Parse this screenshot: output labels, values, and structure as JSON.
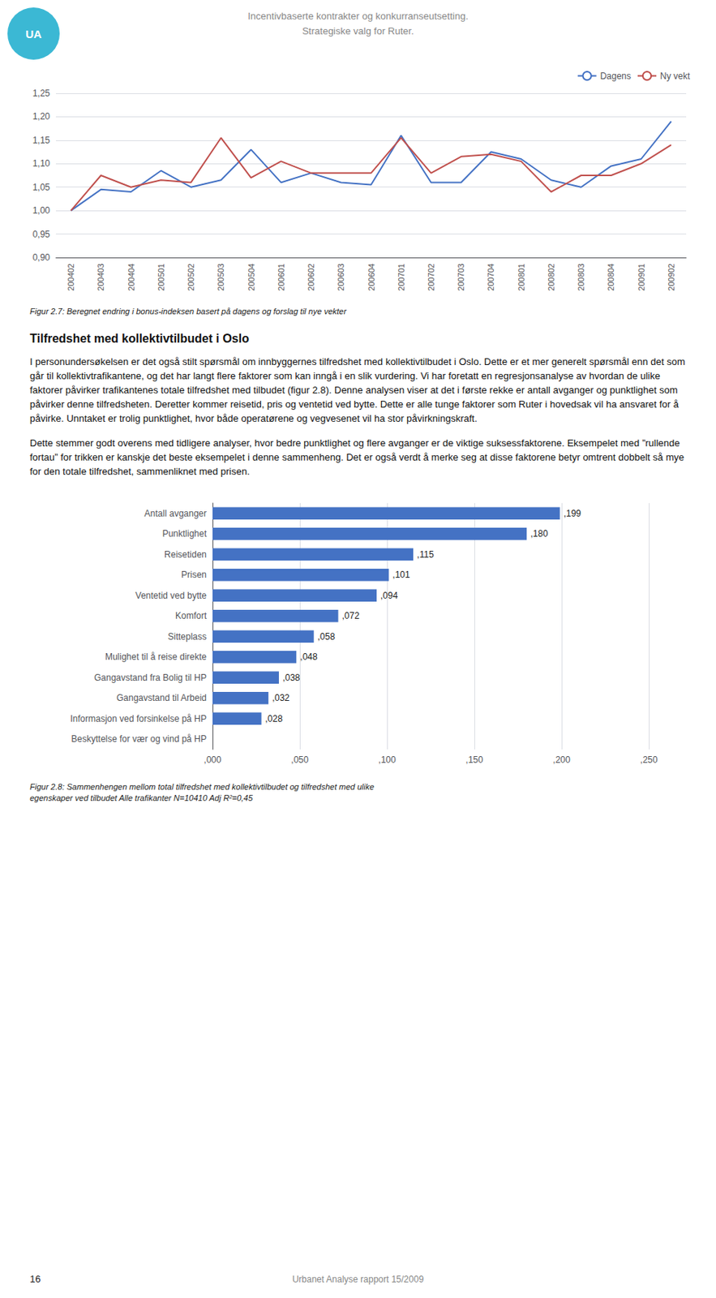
{
  "chart_data": [
    {
      "type": "line",
      "title": "Figur 2.7: Beregnet endring i bonus-indeksen basert på dagens og forslag til nye vekter",
      "annotations": [
        "UA",
        "Incentivbaserte kontrakter og konkurranseutsetting.",
        "Strategiske valg for Ruter."
      ],
      "categories": [
        "200402",
        "200403",
        "200404",
        "200501",
        "200502",
        "200503",
        "200504",
        "200601",
        "200602",
        "200603",
        "200604",
        "200701",
        "200702",
        "200703",
        "200704",
        "200801",
        "200802",
        "200803",
        "200804",
        "200901",
        "200902"
      ],
      "series": [
        {
          "name": "Dagens",
          "color": "#4472C4",
          "values": [
            1.0,
            1.045,
            1.04,
            1.085,
            1.05,
            1.065,
            1.13,
            1.06,
            1.08,
            1.06,
            1.055,
            1.16,
            1.06,
            1.06,
            1.125,
            1.11,
            1.065,
            1.05,
            1.095,
            1.11,
            1.19
          ]
        },
        {
          "name": "Ny vekt",
          "color": "#C0504D",
          "values": [
            1.0,
            1.075,
            1.05,
            1.065,
            1.06,
            1.155,
            1.07,
            1.105,
            1.08,
            1.08,
            1.08,
            1.155,
            1.08,
            1.115,
            1.12,
            1.105,
            1.04,
            1.075,
            1.075,
            1.1,
            1.14
          ]
        }
      ],
      "ylim": [
        0.9,
        1.25
      ],
      "yticks": [
        {
          "value": 0.9,
          "label": "0,90"
        },
        {
          "value": 0.95,
          "label": "0,95"
        },
        {
          "value": 1.0,
          "label": "1,00"
        },
        {
          "value": 1.05,
          "label": "1,05"
        },
        {
          "value": 1.1,
          "label": "1,10"
        },
        {
          "value": 1.15,
          "label": "1,15"
        },
        {
          "value": 1.2,
          "label": "1,20"
        },
        {
          "value": 1.25,
          "label": "1,25"
        }
      ],
      "grid": true,
      "legend": "upper right"
    },
    {
      "type": "bar",
      "orientation": "horizontal",
      "title": "Figur 2.8: Sammenhengen mellom total tilfredshet med kollektivtilbudet og tilfredshet med ulike",
      "subtitle": "egenskaper ved tilbudet Alle trafikanter N=10410 Adj R²=0,45",
      "annotations": [
        "Tilfredshet med kollektivtilbudet i Oslo",
        "I personundersøkelsen er det også stilt spørsmål om innbyggernes tilfredshet med kollektivtilbudet i Oslo. Dette er et mer generelt spørsmål enn det som går til kollektivtrafikantene, og det har langt flere faktorer som kan inngå i en slik vurdering. Vi har foretatt en regresjonsanalyse av hvordan de ulike faktorer påvirker trafikantenes totale tilfredshet med tilbudet (figur 2.8). Denne analysen viser at det i første rekke er antall avganger og punktlighet som påvirker denne tilfredsheten. Deretter kommer reisetid, pris og ventetid ved bytte. Dette er alle tunge faktorer som Ruter i hovedsak vil ha ansvaret for å påvirke. Unntaket er trolig punktlighet, hvor både operatørene og vegvesenet vil ha stor påvirkningskraft.",
        "Dette stemmer godt overens med tidligere analyser, hvor bedre punktlighet og flere avganger er de viktige suksessfaktorene. Eksempelet med ”rullende fortau” for trikken er kanskje det beste eksempelet i denne sammenheng. Det er også verdt å merke seg at disse faktorene betyr omtrent dobbelt så mye for den totale tilfredshet, sammenliknet med prisen.",
        "16",
        "Urbanet Analyse rapport 15/2009"
      ],
      "categories": [
        "Antall avganger",
        "Punktlighet",
        "Reisetiden",
        "Prisen",
        "Ventetid ved bytte",
        "Komfort",
        "Sitteplass",
        "Mulighet til å reise direkte",
        "Gangavstand fra Bolig til HP",
        "Gangavstand til Arbeid",
        "Informasjon ved forsinkelse på HP",
        "Beskyttelse for vær og vind på HP"
      ],
      "values": [
        0.199,
        0.18,
        0.115,
        0.101,
        0.094,
        0.072,
        0.058,
        0.048,
        0.038,
        0.032,
        0.028,
        0
      ],
      "value_labels": [
        ",199",
        ",180",
        ",115",
        ",101",
        ",094",
        ",072",
        ",058",
        ",048",
        ",038",
        ",032",
        ",028",
        null
      ],
      "data_labels": true,
      "color": "#4472C4",
      "xlim": [
        0,
        0.25
      ],
      "xticks": [
        {
          "value": 0,
          "label": ",000"
        },
        {
          "value": 0.05,
          "label": ",050"
        },
        {
          "value": 0.1,
          "label": ",100"
        },
        {
          "value": 0.15,
          "label": ",150"
        },
        {
          "value": 0.2,
          "label": ",200"
        },
        {
          "value": 0.25,
          "label": ",250"
        }
      ],
      "grid": true
    }
  ]
}
